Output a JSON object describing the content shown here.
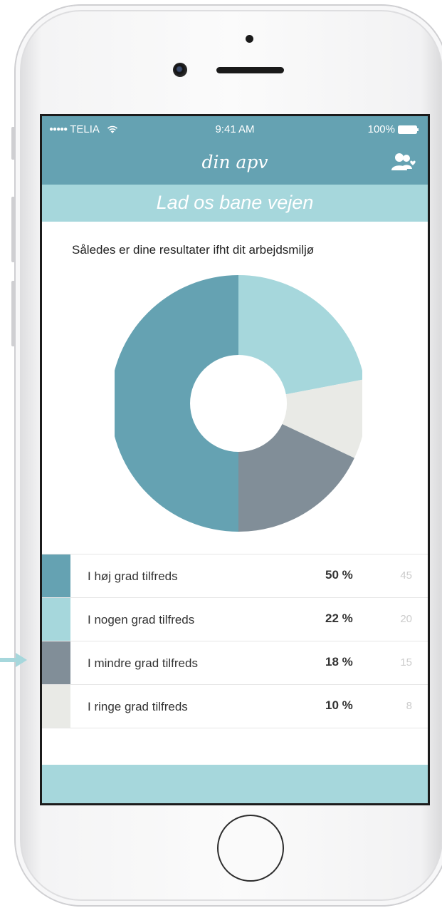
{
  "status_bar": {
    "carrier": "TELIA",
    "time": "9:41 AM",
    "battery": "100%"
  },
  "nav": {
    "title": "din apv",
    "right_icon": "users-heart-icon"
  },
  "banner": {
    "text": "Lad os bane vejen"
  },
  "subtitle": "Således er dine resultater ifht dit arbejdsmiljø",
  "colors": {
    "primary": "#65a2b2",
    "light": "#a6d7dc",
    "slate": "#818e98",
    "pale": "#e9eae6"
  },
  "chart_data": {
    "type": "pie",
    "donut": true,
    "categories": [
      "I høj grad tilfreds",
      "I nogen grad tilfreds",
      "I mindre grad tilfreds",
      "I ringe grad tilfreds"
    ],
    "values": [
      50,
      22,
      18,
      10
    ],
    "counts": [
      45,
      20,
      15,
      8
    ],
    "colors": [
      "#65a2b2",
      "#a6d7dc",
      "#818e98",
      "#e9eae6"
    ]
  },
  "legend": [
    {
      "label": "I høj grad tilfreds",
      "percent": "50 %",
      "count": "45"
    },
    {
      "label": "I nogen grad tilfreds",
      "percent": "22 %",
      "count": "20"
    },
    {
      "label": "I mindre grad tilfreds",
      "percent": "18 %",
      "count": "15"
    },
    {
      "label": "I ringe grad tilfreds",
      "percent": "10 %",
      "count": "8"
    }
  ]
}
